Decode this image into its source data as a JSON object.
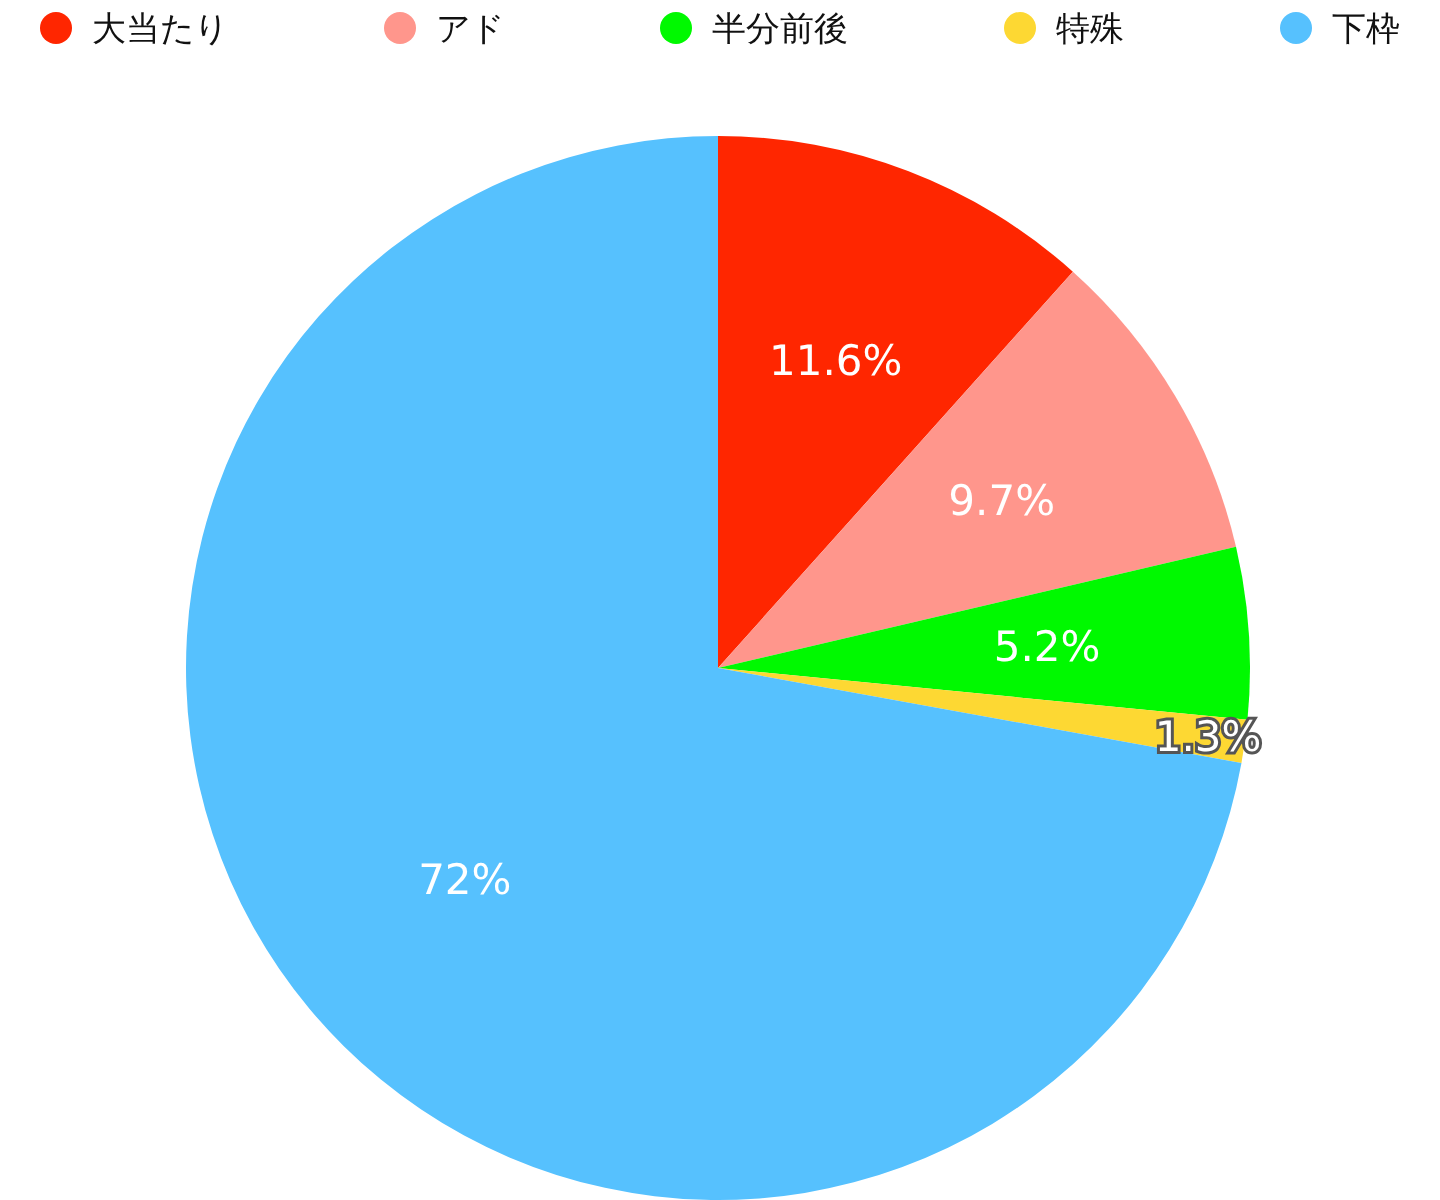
{
  "chart_data": {
    "type": "pie",
    "categories": [
      "大当たり",
      "アド",
      "半分前後",
      "特殊",
      "下枠"
    ],
    "values": [
      11.6,
      9.7,
      5.2,
      1.3,
      72
    ],
    "colors": [
      "#ff2600",
      "#ff968c",
      "#00f900",
      "#fdd833",
      "#56c1fe"
    ],
    "value_labels": [
      "11.6%",
      "9.7%",
      "5.2%",
      "1.3%",
      "72%"
    ],
    "legend": "top"
  }
}
